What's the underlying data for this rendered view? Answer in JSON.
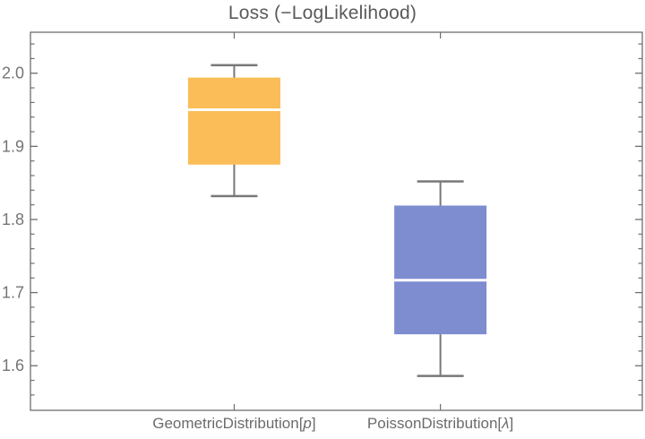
{
  "title": "Loss (−LogLikelihood)",
  "colors": {
    "geometric_box": "#FBBD57",
    "poisson_box": "#7E8CD0",
    "median_line": "#FFFFFF",
    "whisker": "#787878",
    "frame": "#6e6e6e",
    "tick_label": "#757575",
    "category_label": "#6b6b6b",
    "title_text": "#5a5a5a",
    "background": "#FFFFFF"
  },
  "chart_data": {
    "type": "boxplot",
    "title": "Loss (−LogLikelihood)",
    "xlabel": "",
    "ylabel": "",
    "grid": false,
    "framed": true,
    "legend": "none",
    "ylim": [
      1.539,
      2.056
    ],
    "y_major_ticks": [
      1.6,
      1.7,
      1.8,
      1.9,
      2.0
    ],
    "y_major_tick_labels": [
      "1.6",
      "1.7",
      "1.8",
      "1.9",
      "2.0"
    ],
    "y_minor_tick_step": 0.02,
    "categories": [
      "GeometricDistribution[p]",
      "PoissonDistribution[λ]"
    ],
    "series": [
      {
        "label": "GeometricDistribution[p]",
        "label_prefix": "GeometricDistribution[",
        "label_param": "p",
        "label_suffix": "]",
        "color": "#FBBD57",
        "whisker_min": 1.832,
        "q1": 1.875,
        "median": 1.95,
        "q3": 1.994,
        "whisker_max": 2.011,
        "x_fraction": 0.333
      },
      {
        "label": "PoissonDistribution[λ]",
        "label_prefix": "PoissonDistribution[",
        "label_param": "λ",
        "label_suffix": "]",
        "color": "#7E8CD0",
        "whisker_min": 1.586,
        "q1": 1.643,
        "median": 1.717,
        "q3": 1.819,
        "whisker_max": 1.852,
        "x_fraction": 0.67
      }
    ]
  }
}
